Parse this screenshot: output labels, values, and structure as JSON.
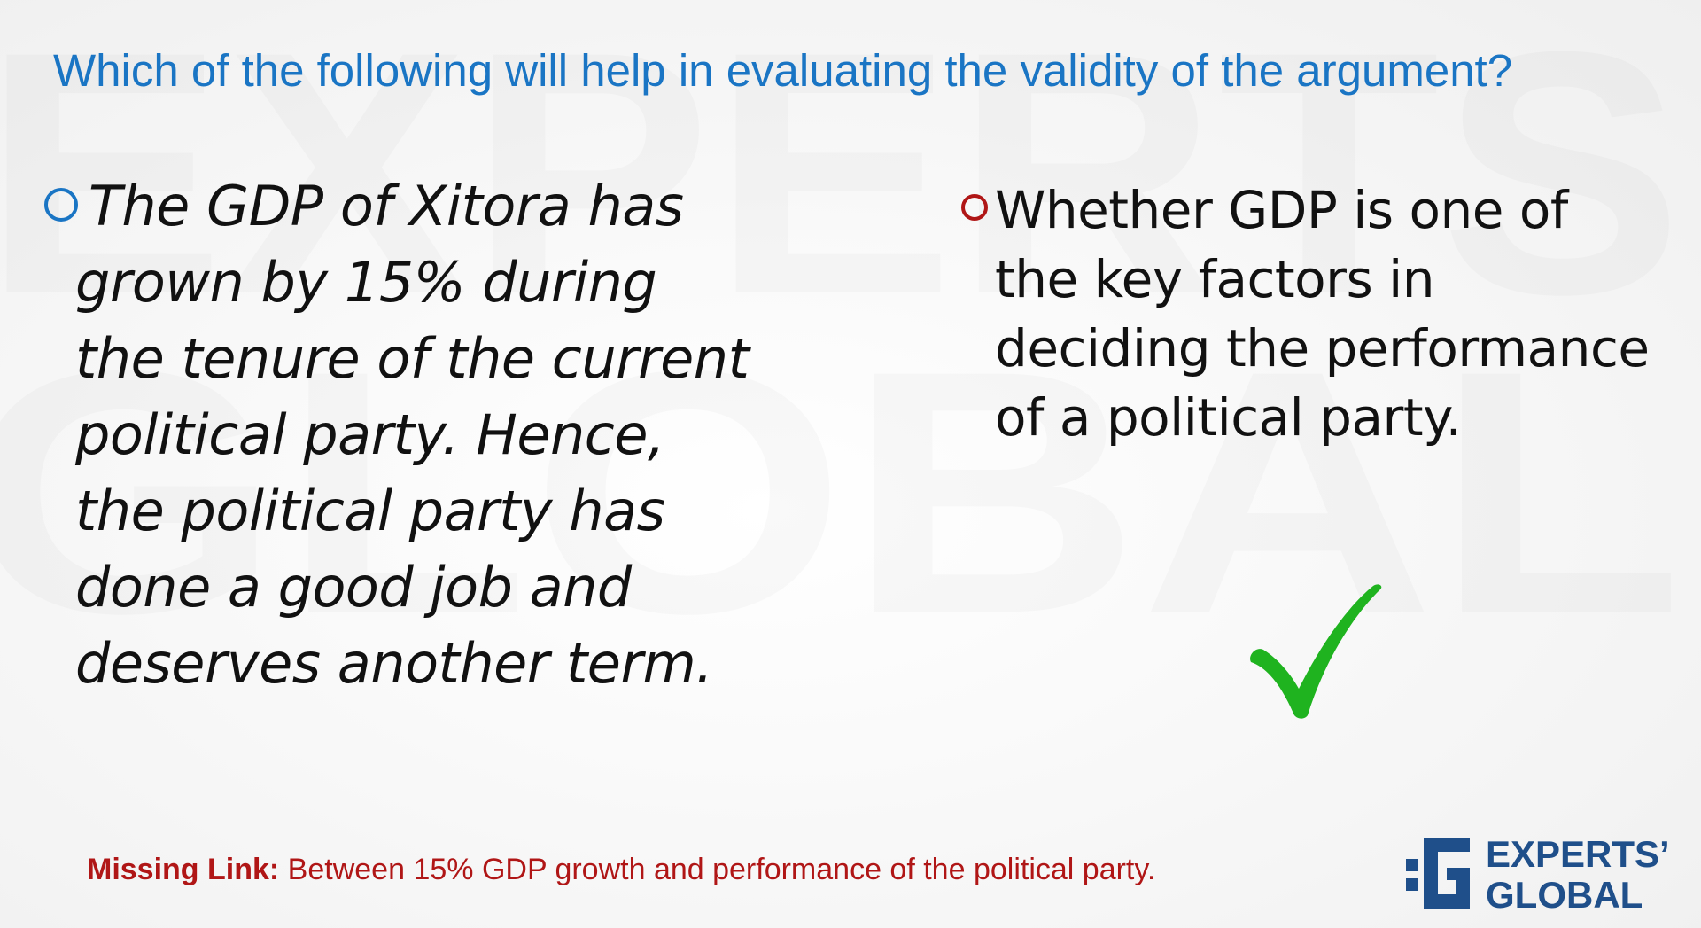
{
  "question": "Which of the following will help in evaluating the validity of the argument?",
  "statement": {
    "lines": [
      "The GDP of Xitora has",
      "grown by 15% during",
      "the tenure of the current",
      "political party. Hence,",
      "the political party has",
      "done a good job and",
      "deserves another term."
    ]
  },
  "option": {
    "lines": [
      "Whether GDP is one of",
      "the key factors in",
      "deciding the performance",
      "of a political party."
    ],
    "status_icon": "checkmark-icon"
  },
  "missing_link": {
    "label": "Missing Link:",
    "text": " Between 15% GDP growth and performance of the political party."
  },
  "logo": {
    "line1": "EXPERTS’",
    "line2": "GLOBAL",
    "watermark_line1": "EXPERTS",
    "watermark_line2": "GLOBAL"
  },
  "colors": {
    "question": "#1a75c4",
    "bullet_statement": "#1a75c4",
    "bullet_option": "#b01616",
    "missing_link": "#b01616",
    "checkmark": "#1fb31f",
    "logo": "#1f4f8a"
  }
}
